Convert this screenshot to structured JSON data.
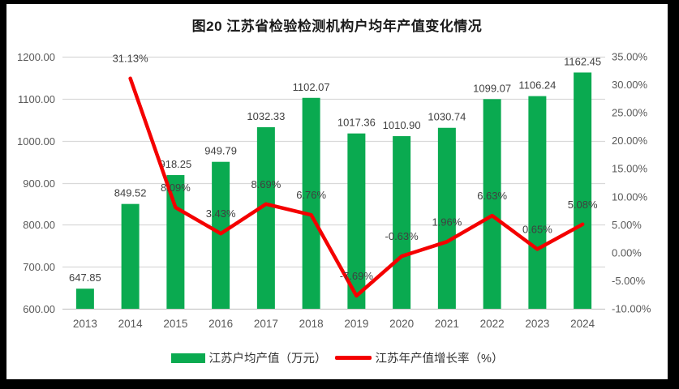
{
  "page": {
    "outer_background": "#000000",
    "panel_background": "#ffffff"
  },
  "colors": {
    "bar_green": "#0aaa50",
    "line_red": "#f40000",
    "gridline": "#d9d9d9",
    "axis_baseline": "#c8c8c8",
    "tick_text": "#595959",
    "data_label_text": "#404040",
    "title_text": "#1a1a1a"
  },
  "chart_data": {
    "type": "combo-bar-line",
    "title": "图20  江苏省检验检测机构户均年产值变化情况",
    "categories": [
      "2013",
      "2014",
      "2015",
      "2016",
      "2017",
      "2018",
      "2019",
      "2020",
      "2021",
      "2022",
      "2023",
      "2024"
    ],
    "series": [
      {
        "name": "江苏户均产值（万元）",
        "type": "bar",
        "axis": "left",
        "color": "#0aaa50",
        "values": [
          647.85,
          849.52,
          918.25,
          949.79,
          1032.33,
          1102.07,
          1017.36,
          1010.9,
          1030.74,
          1099.07,
          1106.24,
          1162.45
        ],
        "labels": [
          "647.85",
          "849.52",
          "918.25",
          "949.79",
          "1032.33",
          "1102.07",
          "1017.36",
          "1010.90",
          "1030.74",
          "1099.07",
          "1106.24",
          "1162.45"
        ]
      },
      {
        "name": "江苏年产值增长率（%）",
        "type": "line",
        "axis": "right",
        "color": "#f40000",
        "values": [
          null,
          31.13,
          8.09,
          3.43,
          8.69,
          6.76,
          -7.69,
          -0.63,
          1.96,
          6.63,
          0.65,
          5.08
        ],
        "labels": [
          null,
          "31.13%",
          "8.09%",
          "3.43%",
          "8.69%",
          "6.76%",
          "-7.69%",
          "-0.63%",
          "1.96%",
          "6.63%",
          "0.65%",
          "5.08%"
        ]
      }
    ],
    "left_axis": {
      "min": 600,
      "max": 1200,
      "step": 100,
      "tick_labels_top_to_bottom": [
        "1200.00",
        "1100.00",
        "1000.00",
        "900.00",
        "800.00",
        "700.00",
        "600.00"
      ]
    },
    "right_axis": {
      "min": -10,
      "max": 35,
      "step": 5,
      "tick_labels_top_to_bottom": [
        "35.00%",
        "30.00%",
        "25.00%",
        "20.00%",
        "15.00%",
        "10.00%",
        "5.00%",
        "0.00%",
        "-5.00%",
        "-10.00%"
      ]
    },
    "grid": "horizontal-only",
    "legend_position": "bottom"
  }
}
